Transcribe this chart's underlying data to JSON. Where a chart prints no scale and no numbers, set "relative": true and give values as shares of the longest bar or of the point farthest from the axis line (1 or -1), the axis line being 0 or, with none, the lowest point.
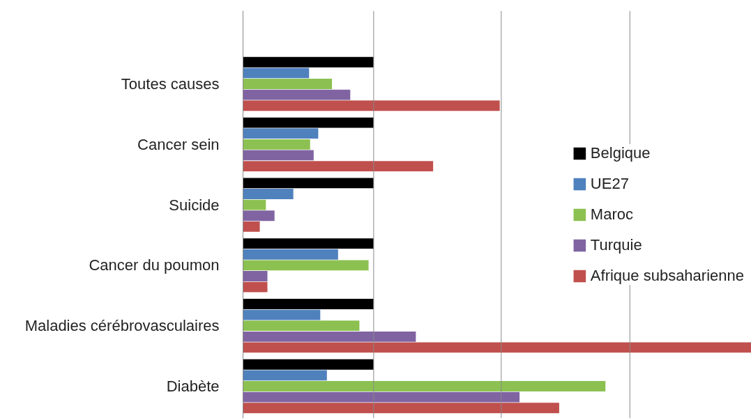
{
  "chart_data": {
    "type": "bar",
    "orientation": "horizontal",
    "relative": true,
    "categories": [
      "Toutes causes",
      "Cancer sein",
      "Suicide",
      "Cancer du poumon",
      "Maladies cérébrovasculaires",
      "Diabète"
    ],
    "series": [
      {
        "name": "Belgique",
        "color": "#000000",
        "values": [
          0.257,
          0.257,
          0.257,
          0.257,
          0.257,
          0.257
        ]
      },
      {
        "name": "UE27",
        "color": "#4f81bd",
        "values": [
          0.13,
          0.148,
          0.099,
          0.187,
          0.152,
          0.165
        ]
      },
      {
        "name": "Maroc",
        "color": "#8cc152",
        "values": [
          0.175,
          0.132,
          0.045,
          0.247,
          0.229,
          0.713
        ]
      },
      {
        "name": "Turquie",
        "color": "#8064a2",
        "values": [
          0.211,
          0.139,
          0.062,
          0.048,
          0.34,
          0.544
        ]
      },
      {
        "name": "Afrique subsaharienne",
        "color": "#c0504d",
        "values": [
          0.505,
          0.374,
          0.033,
          0.048,
          1,
          0.622
        ]
      }
    ],
    "ref_lines": [
      {
        "axis": "x",
        "value": 0.257,
        "color": "#888888"
      },
      {
        "axis": "x",
        "value": 0.508,
        "color": "#888888"
      },
      {
        "axis": "x",
        "value": 0.761,
        "color": "#888888"
      }
    ],
    "legend": "right"
  }
}
